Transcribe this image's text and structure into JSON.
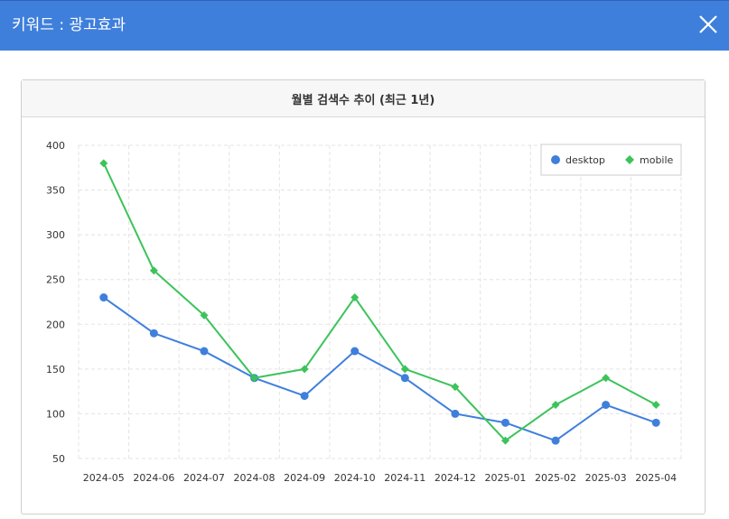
{
  "window": {
    "title": "키워드 : 광고효과",
    "close_icon": "close-icon"
  },
  "panel": {
    "title": "월별 검색수 추이 (최근 1년)"
  },
  "chart_data": {
    "type": "line",
    "title": "월별 검색수 추이 (최근 1년)",
    "categories": [
      "2024-05",
      "2024-06",
      "2024-07",
      "2024-08",
      "2024-09",
      "2024-10",
      "2024-11",
      "2024-12",
      "2025-01",
      "2025-02",
      "2025-03",
      "2025-04"
    ],
    "series": [
      {
        "name": "desktop",
        "color": "#3f7fdc",
        "marker": "circle",
        "values": [
          230,
          190,
          170,
          140,
          120,
          170,
          140,
          100,
          90,
          70,
          110,
          90
        ]
      },
      {
        "name": "mobile",
        "color": "#3cc35a",
        "marker": "diamond",
        "values": [
          380,
          260,
          210,
          140,
          150,
          230,
          150,
          130,
          70,
          110,
          140,
          110
        ]
      }
    ],
    "ylim": [
      50,
      400
    ],
    "yticks": [
      50,
      100,
      150,
      200,
      250,
      300,
      350,
      400
    ],
    "grid": true,
    "legend_position": "top-right"
  }
}
